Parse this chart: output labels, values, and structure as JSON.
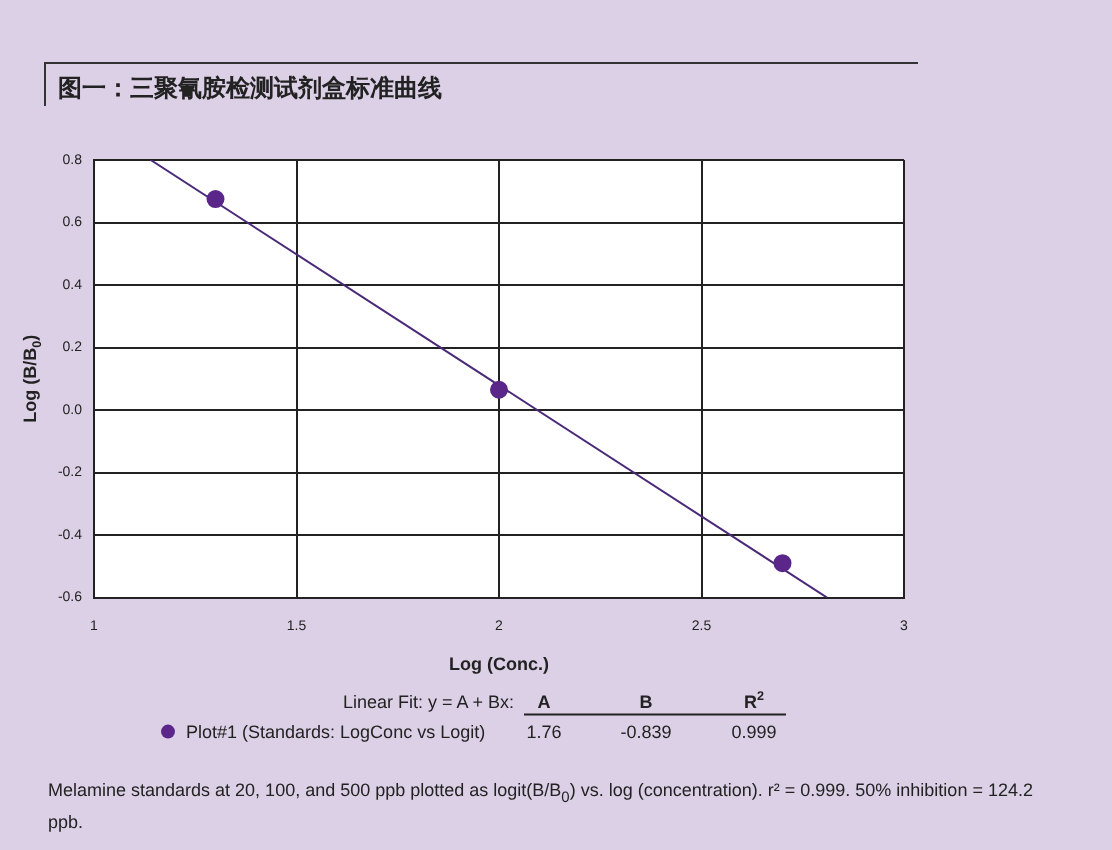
{
  "chart_data": {
    "type": "scatter",
    "title": "图一：三聚氰胺检测试剂盒标准曲线",
    "xlabel": "Log (Conc.)",
    "ylabel": "Log (B/B$_{0}$)",
    "xlim": [
      1,
      3
    ],
    "xticks": [
      1,
      1.5,
      2,
      2.5,
      3
    ],
    "ylim": [
      -0.6,
      0.8
    ],
    "yticks": [
      {
        "value": -0.6,
        "label": "-0.6"
      },
      {
        "value": -0.4,
        "label": "-0.4"
      },
      {
        "value": -0.2,
        "label": "-0.2"
      },
      {
        "value": 0,
        "label": "0.0"
      },
      0.2,
      0.4,
      0.6,
      0.8
    ],
    "grid": true,
    "legend": "bottom",
    "marker": "circle",
    "series": [
      {
        "name": "Plot#1 (Standards: LogConc vs Logit)",
        "color": "#5a2689",
        "x": [
          1.3,
          2.0,
          2.7
        ],
        "values": [
          0.675,
          0.065,
          -0.49
        ]
      },
      {
        "type": "line",
        "marker": "none",
        "color": "#4a2a78",
        "x": [
          1.14,
          2.81
        ],
        "values": [
          0.8,
          -0.6
        ]
      }
    ],
    "annotations": [
      "Linear Fit: y = A + Bx:",
      "A",
      "B",
      "R$^{2}$",
      "1.76",
      "-0.839",
      "0.999",
      "Melamine standards at 20, 100, and 500 ppb plotted as logit(B/B$_{0}$) vs. log (concentration). r² = 0.999. 50% inhibition = 124.2 ppb."
    ]
  }
}
